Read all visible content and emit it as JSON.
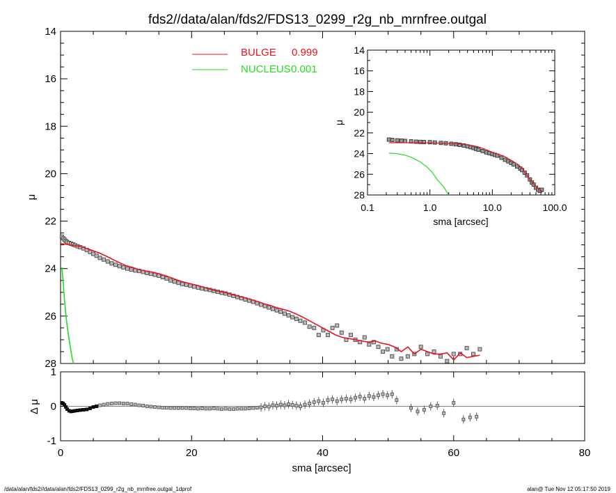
{
  "title": "fds2//data/alan/fds2/FDS13_0299_r2g_nb_mrnfree.outgal",
  "footer_left": "/data/alan/fds2//data/alan/fds2/FDS13_0299_r2g_nb_mrnfree.outgal_1dprof",
  "footer_right": "alan@  Tue Nov 12 05:17:50 2019",
  "colors": {
    "bulge": "#e8141e",
    "nucleus": "#22dd22",
    "data": "#555555",
    "axis": "#000000"
  },
  "chart_data": [
    {
      "panel": "main",
      "type": "scatter",
      "xlabel": "sma [arcsec]",
      "ylabel": "μ",
      "xlim": [
        0,
        80
      ],
      "ylim": [
        28,
        14
      ],
      "xticks": [
        "0",
        "20",
        "40",
        "60",
        "80"
      ],
      "yticks": [
        "14",
        "16",
        "18",
        "20",
        "22",
        "24",
        "26",
        "28"
      ],
      "legend": [
        {
          "label": "BULGE",
          "value": "0.999",
          "color": "#e8141e"
        },
        {
          "label": "NUCLEUS",
          "value": "0.001",
          "color": "#22dd22"
        }
      ],
      "series": [
        {
          "kind": "data",
          "x": [
            0.2,
            0.4,
            0.6,
            0.8,
            1.0,
            1.3,
            1.6,
            1.9,
            2.2,
            2.6,
            3.0,
            3.5,
            4.0,
            4.5,
            5.0,
            5.5,
            6.0,
            6.6,
            7.2,
            7.8,
            8.4,
            9.0,
            9.6,
            10.2,
            10.8,
            11.4,
            12.0,
            12.6,
            13.2,
            13.8,
            14.4,
            15.0,
            15.6,
            16.2,
            16.8,
            17.4,
            18.0,
            18.6,
            19.2,
            19.8,
            20.4,
            21.0,
            21.6,
            22.2,
            22.8,
            23.4,
            24.0,
            24.6,
            25.2,
            25.8,
            26.4,
            27.0,
            27.6,
            28.2,
            28.8,
            29.4,
            30.0,
            30.6,
            31.2,
            31.8,
            32.4,
            33.0,
            33.6,
            34.2,
            34.8,
            35.4,
            36.0,
            36.6,
            37.3,
            38.0,
            38.7,
            39.4,
            40.1,
            40.8,
            41.5,
            42.2,
            42.9,
            43.6,
            44.3,
            45.0,
            45.7,
            46.4,
            47.1,
            47.8,
            48.5,
            49.2,
            49.9,
            50.6,
            51.3,
            52.0,
            53.0,
            54.0,
            55.0,
            56.0,
            57.0,
            58.0,
            59.0,
            60.0,
            61.0,
            62.0,
            63.0,
            64.0
          ],
          "y": [
            22.65,
            22.72,
            22.78,
            22.84,
            22.88,
            22.92,
            22.95,
            22.98,
            23.02,
            23.06,
            23.1,
            23.15,
            23.22,
            23.3,
            23.38,
            23.46,
            23.55,
            23.62,
            23.7,
            23.78,
            23.84,
            23.9,
            23.95,
            24.0,
            24.04,
            24.08,
            24.1,
            24.14,
            24.18,
            24.22,
            24.26,
            24.3,
            24.36,
            24.42,
            24.5,
            24.55,
            24.6,
            24.65,
            24.68,
            24.72,
            24.76,
            24.8,
            24.84,
            24.87,
            24.9,
            24.94,
            24.98,
            25.02,
            25.05,
            25.1,
            25.15,
            25.2,
            25.25,
            25.3,
            25.35,
            25.4,
            25.46,
            25.52,
            25.58,
            25.64,
            25.7,
            25.76,
            25.82,
            25.9,
            25.97,
            26.05,
            26.12,
            26.2,
            26.28,
            26.45,
            26.5,
            26.8,
            26.6,
            26.8,
            26.5,
            26.4,
            26.7,
            27.0,
            26.8,
            27.0,
            27.1,
            26.9,
            27.2,
            27.1,
            27.3,
            27.5,
            27.4,
            27.7,
            27.4,
            27.8,
            27.7,
            27.6,
            27.3,
            27.6,
            27.5,
            27.7,
            27.9,
            27.6,
            27.6,
            27.35,
            27.6,
            27.4
          ]
        },
        {
          "kind": "model",
          "name": "BULGE",
          "x": [
            0,
            1,
            2,
            3,
            4,
            5,
            6,
            7,
            8,
            9,
            10,
            11,
            12,
            13,
            14,
            15,
            16,
            17,
            18,
            19,
            20,
            21,
            22,
            23,
            24,
            25,
            26,
            27,
            28,
            29,
            30,
            31,
            32,
            33,
            34,
            35,
            36,
            37,
            38,
            39,
            40,
            41,
            42,
            43,
            44,
            45,
            46,
            47,
            48,
            49,
            50,
            51,
            52,
            53,
            54,
            55,
            56,
            57,
            58,
            59,
            60,
            61,
            62,
            63,
            64
          ],
          "y": [
            22.95,
            22.98,
            23.02,
            23.07,
            23.15,
            23.25,
            23.35,
            23.48,
            23.62,
            23.75,
            23.88,
            23.95,
            24.05,
            24.1,
            24.15,
            24.22,
            24.3,
            24.4,
            24.5,
            24.58,
            24.65,
            24.72,
            24.8,
            24.88,
            24.95,
            25.0,
            25.08,
            25.15,
            25.22,
            25.3,
            25.38,
            25.48,
            25.55,
            25.65,
            25.72,
            25.8,
            25.92,
            26.05,
            26.2,
            26.35,
            26.5,
            26.65,
            26.8,
            26.9,
            26.95,
            27.0,
            27.05,
            27.1,
            27.05,
            27.15,
            27.2,
            27.3,
            27.5,
            27.3,
            27.6,
            27.4,
            27.5,
            27.6,
            27.6,
            27.55,
            27.85,
            27.55,
            27.75,
            27.7,
            27.65
          ]
        },
        {
          "kind": "model",
          "name": "NUCLEUS",
          "x": [
            0.2,
            0.4,
            0.6,
            0.8,
            1.0,
            1.2,
            1.4,
            1.6,
            1.8,
            2.0
          ],
          "y": [
            23.95,
            24.6,
            25.3,
            25.9,
            26.4,
            26.8,
            27.15,
            27.5,
            27.8,
            28.0
          ]
        }
      ]
    },
    {
      "panel": "residual",
      "type": "scatter",
      "xlabel": "sma [arcsec]",
      "ylabel": "Δ μ",
      "xlim": [
        0,
        80
      ],
      "ylim": [
        -1,
        1
      ],
      "xticks": [
        "0",
        "20",
        "40",
        "60",
        "80"
      ],
      "yticks": [
        "-1",
        "0",
        "1"
      ],
      "series": [
        {
          "name": "residual",
          "x": [
            0.2,
            0.4,
            0.6,
            0.8,
            1.0,
            1.3,
            1.6,
            1.9,
            2.2,
            2.6,
            3.0,
            3.5,
            4.0,
            4.5,
            5.0,
            5.5,
            6.0,
            6.6,
            7.2,
            7.8,
            8.4,
            9.0,
            9.6,
            10.2,
            10.8,
            11.4,
            12.0,
            12.6,
            13.2,
            13.8,
            14.4,
            15.0,
            15.6,
            16.2,
            16.8,
            17.4,
            18.0,
            18.6,
            19.2,
            19.8,
            20.4,
            21.0,
            21.6,
            22.2,
            22.8,
            23.4,
            24.0,
            24.6,
            25.2,
            25.8,
            26.4,
            27.0,
            27.6,
            28.2,
            28.8,
            29.4,
            30.0,
            30.6,
            31.2,
            31.8,
            32.4,
            33.0,
            33.6,
            34.2,
            34.8,
            35.4,
            36.0,
            36.6,
            37.3,
            38.0,
            38.7,
            39.4,
            40.1,
            40.8,
            41.5,
            42.2,
            42.9,
            43.6,
            44.3,
            45.0,
            45.7,
            46.4,
            47.1,
            47.8,
            48.5,
            49.2,
            49.9,
            50.6,
            51.3,
            53.5,
            54.5,
            55.5,
            56.5,
            57.5,
            58.5,
            60.0,
            61.5,
            62.5,
            63.5
          ],
          "y": [
            0.1,
            0.08,
            0.04,
            -0.02,
            -0.08,
            -0.13,
            -0.15,
            -0.14,
            -0.13,
            -0.12,
            -0.11,
            -0.1,
            -0.09,
            -0.06,
            -0.02,
            0.0,
            0.03,
            0.05,
            0.07,
            0.08,
            0.09,
            0.09,
            0.08,
            0.08,
            0.06,
            0.05,
            0.03,
            0.02,
            0.0,
            -0.01,
            -0.02,
            -0.03,
            -0.04,
            -0.04,
            -0.05,
            -0.05,
            -0.05,
            -0.05,
            -0.05,
            -0.06,
            -0.06,
            -0.07,
            -0.06,
            -0.07,
            -0.07,
            -0.06,
            -0.07,
            -0.08,
            -0.07,
            -0.08,
            -0.08,
            -0.07,
            -0.07,
            -0.07,
            -0.06,
            -0.05,
            -0.04,
            -0.03,
            0.0,
            -0.01,
            0.03,
            0.02,
            0.05,
            0.03,
            0.06,
            0.04,
            0.02,
            0.0,
            0.05,
            0.08,
            0.12,
            0.15,
            0.1,
            0.18,
            0.2,
            0.15,
            0.2,
            0.22,
            0.2,
            0.25,
            0.28,
            0.22,
            0.3,
            0.27,
            0.32,
            0.35,
            0.32,
            0.35,
            0.18,
            -0.05,
            -0.15,
            -0.1,
            0.0,
            0.02,
            -0.2,
            0.1,
            -0.38,
            -0.32,
            -0.3
          ]
        }
      ]
    },
    {
      "panel": "inset",
      "type": "scatter",
      "xscale": "log",
      "xlabel": "sma [arcsec]",
      "ylabel": "μ",
      "xlim": [
        0.1,
        100
      ],
      "ylim": [
        28,
        14
      ],
      "xticks": [
        "0.1",
        "1.0",
        "10.0",
        "100.0"
      ],
      "yticks": [
        "14",
        "16",
        "18",
        "20",
        "22",
        "24",
        "26",
        "28"
      ],
      "series": [
        {
          "kind": "data",
          "x": [
            0.22,
            0.25,
            0.3,
            0.35,
            0.4,
            0.5,
            0.6,
            0.7,
            0.8,
            1.0,
            1.2,
            1.5,
            1.8,
            2.2,
            2.6,
            3.0,
            3.5,
            4.0,
            4.5,
            5.0,
            5.5,
            6.0,
            7.0,
            8.0,
            9.0,
            10.0,
            11.0,
            12.0,
            14.0,
            16.0,
            18.0,
            20.0,
            22.0,
            25.0,
            28.0,
            30.0,
            33.0,
            36.0,
            40.0,
            43.0,
            46.0,
            50.0,
            54.0,
            58.0,
            62.0
          ],
          "y": [
            22.65,
            22.68,
            22.72,
            22.75,
            22.78,
            22.82,
            22.85,
            22.87,
            22.88,
            22.9,
            22.93,
            22.97,
            23.0,
            23.05,
            23.1,
            23.15,
            23.22,
            23.3,
            23.38,
            23.46,
            23.55,
            23.62,
            23.75,
            23.88,
            23.96,
            24.05,
            24.12,
            24.2,
            24.4,
            24.6,
            24.75,
            24.9,
            25.05,
            25.25,
            25.45,
            25.6,
            25.85,
            26.1,
            26.5,
            26.8,
            27.0,
            27.3,
            27.5,
            27.6,
            27.5
          ]
        },
        {
          "kind": "model",
          "name": "BULGE",
          "x": [
            0.22,
            0.3,
            0.5,
            0.8,
            1.0,
            1.5,
            2.0,
            3.0,
            4.0,
            5.0,
            6.0,
            8.0,
            10.0,
            12.0,
            15.0,
            20.0,
            25.0,
            30.0,
            40.0,
            50.0,
            60.0,
            64.0
          ],
          "y": [
            22.95,
            22.95,
            22.95,
            22.96,
            22.97,
            23.0,
            23.02,
            23.07,
            23.15,
            23.25,
            23.35,
            23.62,
            23.88,
            24.05,
            24.22,
            24.65,
            25.0,
            25.38,
            26.5,
            27.2,
            27.55,
            27.65
          ]
        },
        {
          "kind": "model",
          "name": "NUCLEUS",
          "x": [
            0.22,
            0.3,
            0.4,
            0.5,
            0.7,
            0.9,
            1.1,
            1.3,
            1.5,
            1.7,
            1.9,
            2.0
          ],
          "y": [
            23.95,
            24.0,
            24.15,
            24.35,
            24.8,
            25.3,
            25.85,
            26.5,
            26.9,
            27.3,
            27.8,
            28.0
          ]
        }
      ]
    }
  ]
}
